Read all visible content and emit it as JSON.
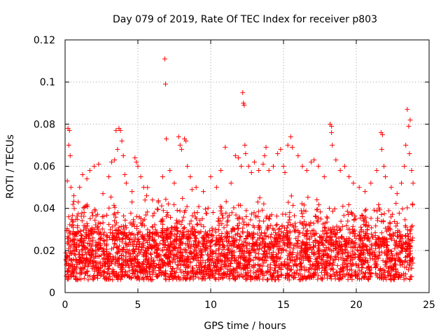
{
  "chart_data": {
    "type": "scatter",
    "title": "Day 079 of 2019, Rate Of TEC Index for receiver p803",
    "xlabel": "GPS time / hours",
    "ylabel": "ROTI / TECUs",
    "xlim": [
      0,
      25
    ],
    "ylim": [
      0,
      0.12
    ],
    "x_ticks": [
      "0",
      "5",
      "10",
      "15",
      "20",
      "25"
    ],
    "x_tick_values": [
      0,
      5,
      10,
      15,
      20,
      25
    ],
    "y_ticks": [
      "0",
      "0.02",
      "0.04",
      "0.06",
      "0.08",
      "0.1",
      "0.12"
    ],
    "y_tick_values": [
      0,
      0.02,
      0.04,
      0.06,
      0.08,
      0.1,
      0.12
    ],
    "grid": true,
    "marker": "+",
    "color": "#ff0000",
    "baseline_density_note": "dense band of points between ~0.005 and ~0.035 across 0-24 h",
    "series": [
      {
        "name": "ROTI",
        "points": [
          [
            0.2,
            0.078
          ],
          [
            0.3,
            0.077
          ],
          [
            0.25,
            0.07
          ],
          [
            0.35,
            0.065
          ],
          [
            0.15,
            0.053
          ],
          [
            0.4,
            0.05
          ],
          [
            0.6,
            0.046
          ],
          [
            0.9,
            0.043
          ],
          [
            1.2,
            0.056
          ],
          [
            1.5,
            0.054
          ],
          [
            1.7,
            0.058
          ],
          [
            2.0,
            0.06
          ],
          [
            2.3,
            0.061
          ],
          [
            1.0,
            0.05
          ],
          [
            2.6,
            0.047
          ],
          [
            3.0,
            0.055
          ],
          [
            3.2,
            0.062
          ],
          [
            3.4,
            0.063
          ],
          [
            3.5,
            0.077
          ],
          [
            3.7,
            0.078
          ],
          [
            3.8,
            0.077
          ],
          [
            3.9,
            0.072
          ],
          [
            3.6,
            0.068
          ],
          [
            4.0,
            0.065
          ],
          [
            4.1,
            0.056
          ],
          [
            4.2,
            0.052
          ],
          [
            4.6,
            0.048
          ],
          [
            4.8,
            0.064
          ],
          [
            4.9,
            0.062
          ],
          [
            5.0,
            0.06
          ],
          [
            5.2,
            0.055
          ],
          [
            5.4,
            0.05
          ],
          [
            5.6,
            0.046
          ],
          [
            6.0,
            0.044
          ],
          [
            6.4,
            0.043
          ],
          [
            6.7,
            0.055
          ],
          [
            6.85,
            0.111
          ],
          [
            6.9,
            0.099
          ],
          [
            6.95,
            0.073
          ],
          [
            7.2,
            0.058
          ],
          [
            7.5,
            0.052
          ],
          [
            7.8,
            0.074
          ],
          [
            7.9,
            0.07
          ],
          [
            8.0,
            0.068
          ],
          [
            8.2,
            0.073
          ],
          [
            8.3,
            0.072
          ],
          [
            8.4,
            0.06
          ],
          [
            8.6,
            0.055
          ],
          [
            9.0,
            0.05
          ],
          [
            9.5,
            0.048
          ],
          [
            10.0,
            0.055
          ],
          [
            10.4,
            0.05
          ],
          [
            10.7,
            0.058
          ],
          [
            11.0,
            0.069
          ],
          [
            11.4,
            0.052
          ],
          [
            11.7,
            0.065
          ],
          [
            11.9,
            0.064
          ],
          [
            12.1,
            0.06
          ],
          [
            12.2,
            0.095
          ],
          [
            12.25,
            0.09
          ],
          [
            12.3,
            0.089
          ],
          [
            12.35,
            0.07
          ],
          [
            12.4,
            0.066
          ],
          [
            12.6,
            0.06
          ],
          [
            12.8,
            0.057
          ],
          [
            13.0,
            0.062
          ],
          [
            13.3,
            0.058
          ],
          [
            13.7,
            0.065
          ],
          [
            13.8,
            0.069
          ],
          [
            13.6,
            0.061
          ],
          [
            14.0,
            0.058
          ],
          [
            14.3,
            0.06
          ],
          [
            14.6,
            0.066
          ],
          [
            14.8,
            0.068
          ],
          [
            15.0,
            0.06
          ],
          [
            15.1,
            0.057
          ],
          [
            15.3,
            0.07
          ],
          [
            15.5,
            0.074
          ],
          [
            15.6,
            0.069
          ],
          [
            16.0,
            0.065
          ],
          [
            16.3,
            0.06
          ],
          [
            16.6,
            0.058
          ],
          [
            16.9,
            0.062
          ],
          [
            17.1,
            0.063
          ],
          [
            17.4,
            0.06
          ],
          [
            17.8,
            0.055
          ],
          [
            18.2,
            0.08
          ],
          [
            18.3,
            0.079
          ],
          [
            18.3,
            0.076
          ],
          [
            18.35,
            0.07
          ],
          [
            18.6,
            0.063
          ],
          [
            18.9,
            0.058
          ],
          [
            19.2,
            0.06
          ],
          [
            19.5,
            0.055
          ],
          [
            19.8,
            0.052
          ],
          [
            20.2,
            0.05
          ],
          [
            20.6,
            0.048
          ],
          [
            21.0,
            0.052
          ],
          [
            21.4,
            0.058
          ],
          [
            21.7,
            0.076
          ],
          [
            21.8,
            0.075
          ],
          [
            21.75,
            0.068
          ],
          [
            21.9,
            0.06
          ],
          [
            22.0,
            0.055
          ],
          [
            22.4,
            0.05
          ],
          [
            22.8,
            0.047
          ],
          [
            23.1,
            0.052
          ],
          [
            23.3,
            0.06
          ],
          [
            23.4,
            0.07
          ],
          [
            23.5,
            0.087
          ],
          [
            23.6,
            0.079
          ],
          [
            23.7,
            0.082
          ],
          [
            23.65,
            0.066
          ],
          [
            23.8,
            0.058
          ],
          [
            23.9,
            0.052
          ]
        ]
      }
    ]
  }
}
